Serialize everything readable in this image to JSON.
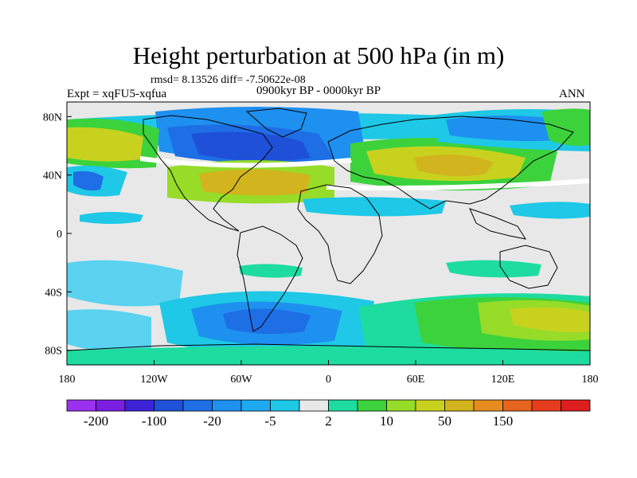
{
  "title": "Height perturbation at 500 hPa (in m)",
  "stats": "rmsd= 8.13526 diff= -7.50622e-08",
  "experiment": "Expt = xqFU5-xqfua",
  "period": "0900kyr BP - 0000kyr BP",
  "season": "ANN",
  "map": {
    "lat_ticks": [
      "80N",
      "40N",
      "0",
      "40S",
      "80S"
    ],
    "lon_ticks": [
      "180",
      "120W",
      "60W",
      "0",
      "60E",
      "120E",
      "180"
    ],
    "ocean_color": "#e8e8e8"
  },
  "colorbar": {
    "colors": [
      "#9b30f0",
      "#7a1ee0",
      "#3c23d8",
      "#1e50d8",
      "#1e6ee6",
      "#1e90f0",
      "#1eaaf0",
      "#1ec8e6",
      "#e8e8e8",
      "#1edca0",
      "#3cd23c",
      "#96dc28",
      "#c8d21e",
      "#d2b41e",
      "#e68c1e",
      "#e6641e",
      "#e63c1e",
      "#dc1e1e"
    ],
    "labels": [
      "-200",
      "-100",
      "-20",
      "-5",
      "2",
      "10",
      "50",
      "150"
    ]
  },
  "palette": {
    "dark_blue": "#1e50d8",
    "blue": "#1e6ee6",
    "mid_blue": "#1e90f0",
    "cyan": "#1ec8e6",
    "light_cyan": "#5ad2f0",
    "teal": "#1edca0",
    "green": "#3cd23c",
    "yellow_green": "#96dc28",
    "olive": "#c8d21e",
    "gold": "#d2b41e",
    "white": "#ffffff"
  }
}
